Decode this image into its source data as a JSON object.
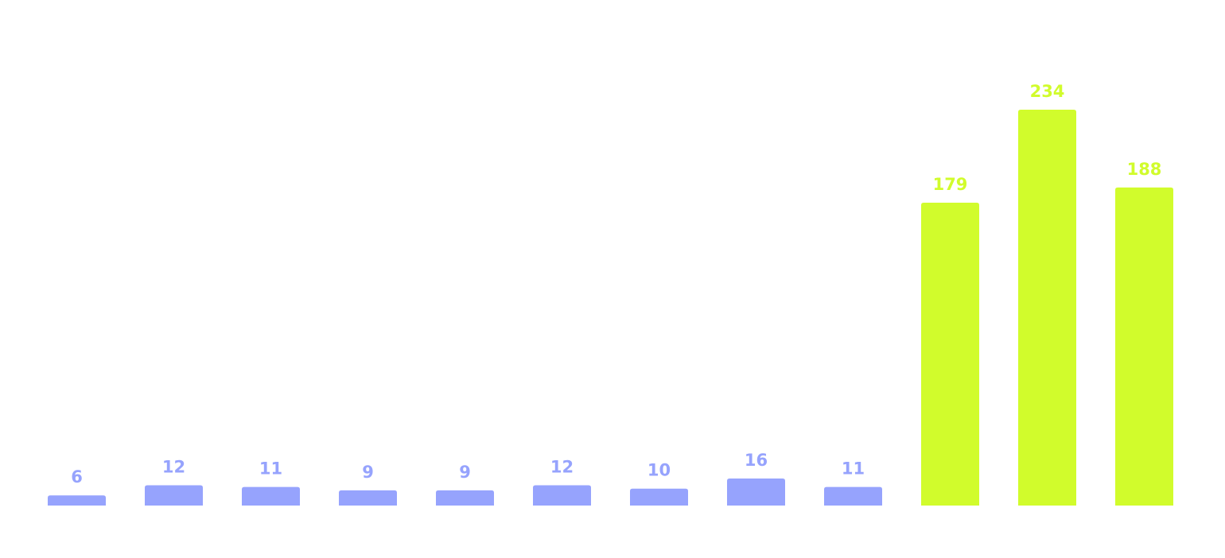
{
  "chart_data": {
    "type": "bar",
    "values": [
      6,
      12,
      11,
      9,
      9,
      12,
      10,
      16,
      11,
      179,
      234,
      188
    ],
    "colors": [
      "#96a3fd",
      "#96a3fd",
      "#96a3fd",
      "#96a3fd",
      "#96a3fd",
      "#96a3fd",
      "#96a3fd",
      "#96a3fd",
      "#96a3fd",
      "#d1fc2c",
      "#d1fc2c",
      "#d1fc2c"
    ]
  }
}
